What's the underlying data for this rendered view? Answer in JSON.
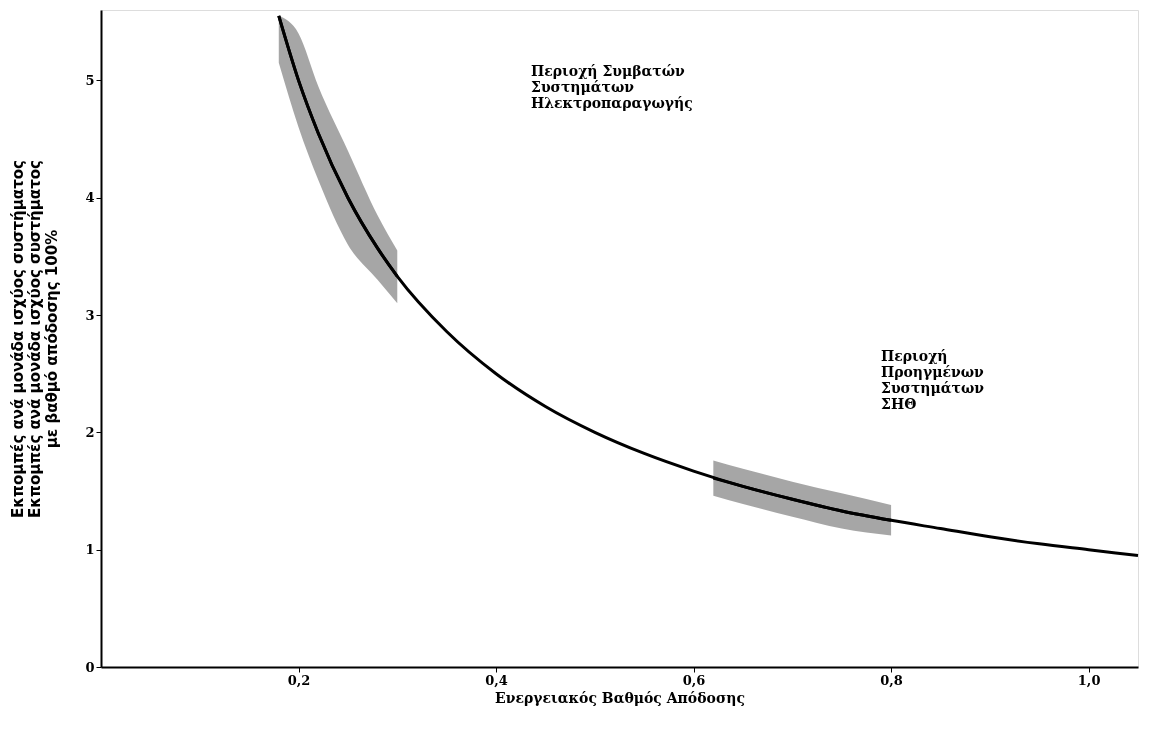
{
  "chart_data": {
    "type": "line",
    "xlabel": "Ενεργειακός Βαθμός Απόδοσης",
    "ylabel": "Εκπομπές ανά μονάδα ισχύος συστήματος\nΕκπομπές ανά μονάδα ισχύος συστήματος\nμε βαθμό απόδοσης 100%",
    "x": [
      0.18,
      0.2,
      0.22,
      0.25,
      0.28,
      0.3,
      0.35,
      0.4,
      0.45,
      0.5,
      0.55,
      0.6,
      0.65,
      0.7,
      0.75,
      0.8,
      0.85,
      0.9,
      0.95,
      1.0,
      1.05
    ],
    "series": [
      {
        "color": "#000000",
        "values": [
          5.55,
          5.0,
          4.55,
          4.0,
          3.57,
          3.33,
          2.86,
          2.5,
          2.22,
          2.0,
          1.82,
          1.67,
          1.54,
          1.43,
          1.33,
          1.25,
          1.18,
          1.11,
          1.05,
          1.0,
          0.95
        ]
      },
      {
        "color": "#000000",
        "x": [
          0.18,
          0.2,
          0.22,
          0.25,
          0.28,
          0.3
        ],
        "values": [
          5.55,
          5.0,
          4.55,
          4.0,
          3.57,
          3.33
        ],
        "lower": [
          5.15,
          4.6,
          4.15,
          3.6,
          3.3,
          3.1
        ],
        "upper": [
          5.55,
          5.4,
          4.95,
          4.4,
          3.85,
          3.55
        ]
      },
      {
        "color": "#000000",
        "x": [
          0.62,
          0.65,
          0.7,
          0.75,
          0.8
        ],
        "values": [
          1.61,
          1.54,
          1.43,
          1.33,
          1.25
        ],
        "lower": [
          1.46,
          1.39,
          1.28,
          1.18,
          1.12
        ],
        "upper": [
          1.76,
          1.69,
          1.58,
          1.48,
          1.38
        ]
      }
    ],
    "xlim": [
      0,
      1.05
    ],
    "ylim": [
      0,
      5.6
    ],
    "xticks": [
      {
        "value": 0.2,
        "label": "0,2"
      },
      {
        "value": 0.4,
        "label": "0,4"
      },
      {
        "value": 0.6,
        "label": "0,6"
      },
      {
        "value": 0.8,
        "label": "0,8"
      },
      {
        "value": 1.0,
        "label": "1,0"
      }
    ],
    "yticks": [
      0,
      1,
      2,
      3,
      4,
      5
    ],
    "grid": false,
    "annotations": [
      "Περιοχή Συμβατών\nΣυστημάτων\nΗλεκτροπαραγωγής",
      "Περιοχή\nΠροηγμένων\nΣυστημάτων\nΣΗΘ"
    ]
  }
}
